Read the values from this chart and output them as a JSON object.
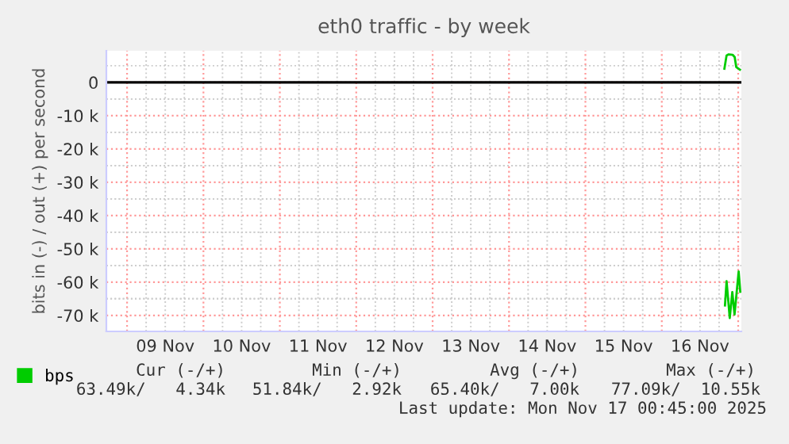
{
  "chart_data": {
    "type": "line",
    "title": "eth0 traffic - by week",
    "ylabel": "bits in (-) / out (+) per second",
    "series": [
      {
        "name": "bps",
        "color": "#00cc00",
        "x": [
          "2025-11-16T19:40",
          "2025-11-16T20:21",
          "2025-11-16T21:00",
          "2025-11-16T22:14",
          "2025-11-16T22:54",
          "2025-11-16T23:23",
          "2025-11-17T00:33"
        ],
        "values": [
          4100,
          8100,
          8400,
          8300,
          7600,
          4600,
          3800
        ]
      },
      {
        "color": "#00cc00",
        "x": [
          "2025-11-16T19:51",
          "2025-11-16T20:21",
          "2025-11-16T21:21",
          "2025-11-16T22:09",
          "2025-11-16T22:51",
          "2025-11-17T00:09",
          "2025-11-17T00:39"
        ],
        "values": [
          -67000,
          -59700,
          -70800,
          -63000,
          -69700,
          -56800,
          -62900
        ]
      }
    ],
    "xlim": [
      "2025-11-08T17:30",
      "2025-11-17T01:00"
    ],
    "xticks": [
      {
        "value": "2025-11-09T00:00",
        "label": null
      },
      {
        "value": "2025-11-09T12:00",
        "label": "09 Nov"
      },
      {
        "value": "2025-11-10T00:00",
        "label": null
      },
      {
        "value": "2025-11-10T12:00",
        "label": "10 Nov"
      },
      {
        "value": "2025-11-11T00:00",
        "label": null
      },
      {
        "value": "2025-11-11T12:00",
        "label": "11 Nov"
      },
      {
        "value": "2025-11-12T00:00",
        "label": null
      },
      {
        "value": "2025-11-12T12:00",
        "label": "12 Nov"
      },
      {
        "value": "2025-11-13T00:00",
        "label": null
      },
      {
        "value": "2025-11-13T12:00",
        "label": "13 Nov"
      },
      {
        "value": "2025-11-14T00:00",
        "label": null
      },
      {
        "value": "2025-11-14T12:00",
        "label": "14 Nov"
      },
      {
        "value": "2025-11-15T00:00",
        "label": null
      },
      {
        "value": "2025-11-15T12:00",
        "label": "15 Nov"
      },
      {
        "value": "2025-11-16T00:00",
        "label": null
      },
      {
        "value": "2025-11-16T12:00",
        "label": "16 Nov"
      },
      {
        "value": "2025-11-17T00:00",
        "label": null
      }
    ],
    "ylim": [
      -74800,
      9500
    ],
    "yticks": [
      0,
      {
        "value": -10000,
        "label": "-10 k"
      },
      {
        "value": -20000,
        "label": "-20 k"
      },
      {
        "value": -30000,
        "label": "-30 k"
      },
      {
        "value": -40000,
        "label": "-40 k"
      },
      {
        "value": -50000,
        "label": "-50 k"
      },
      {
        "value": -60000,
        "label": "-60 k"
      },
      {
        "value": -70000,
        "label": "-70 k"
      }
    ],
    "ref_lines": [
      {
        "axis": "y",
        "value": 0,
        "color": "#000000",
        "line_style": "solid"
      }
    ],
    "grid": true,
    "legend": "bottom left",
    "annotations": [
      "Cur (-/+)",
      "Min (-/+)",
      "Avg (-/+)",
      "Max (-/+)",
      "63.49k/   4.34k",
      "51.84k/   2.92k",
      "65.40k/   7.00k",
      "77.09k/  10.55k",
      "Last update: Mon Nov 17 00:45:00 2025"
    ]
  }
}
